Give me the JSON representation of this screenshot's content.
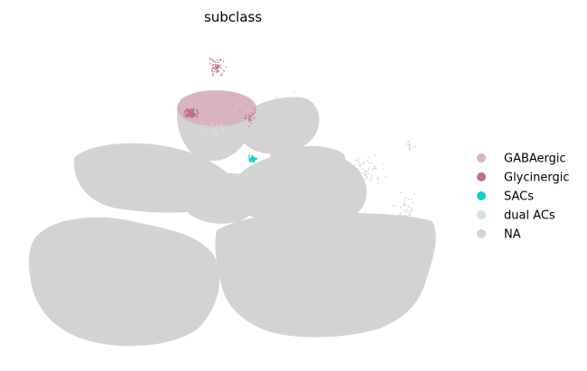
{
  "chart_data": {
    "type": "scatter",
    "title": "subclass",
    "xlabel": "",
    "ylabel": "",
    "grid": false,
    "axes_visible": false,
    "legend_placement": "right",
    "series": [
      {
        "name": "GABAergic",
        "color": "#d8b5be"
      },
      {
        "name": "Glycinergic",
        "color": "#bf6f82"
      },
      {
        "name": "SACs",
        "color": "#12cfbf"
      },
      {
        "name": "dual ACs",
        "color": "#cfe5de"
      },
      {
        "name": "NA",
        "color": "#d3d3d3"
      }
    ]
  }
}
